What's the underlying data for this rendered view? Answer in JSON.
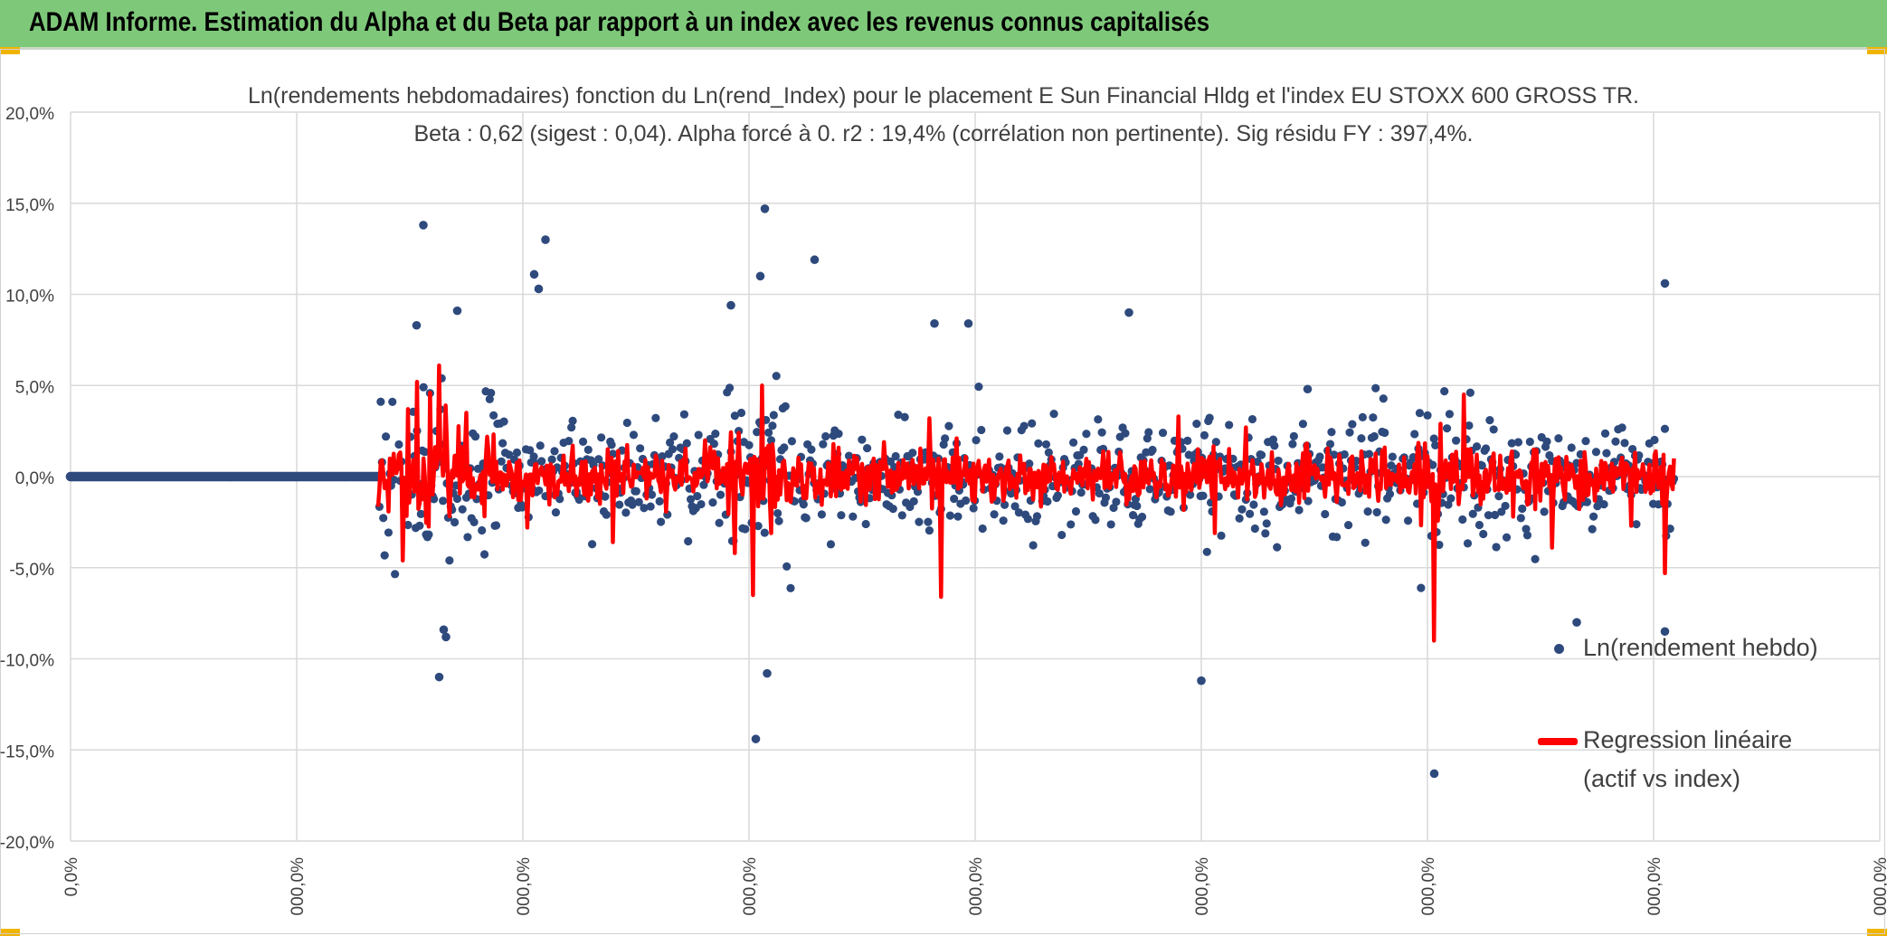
{
  "banner": {
    "title": "ADAM Informe. Estimation du Alpha et du Beta par rapport à un index avec les revenus connus capitalisés",
    "background": "#7ec87a",
    "corner_color": "#f0b400"
  },
  "chart_data": {
    "type": "scatter",
    "title": "Ln(rendements hebdomadaires) fonction du Ln(rend_Index) pour le placement E Sun Financial Hldg  et l'index EU STOXX 600 GROSS TR.",
    "subtitle": "Beta : 0,62 (sigest : 0,04). Alpha forcé à 0. r2 : 19,4% (corrélation non pertinente). Sig résidu FY : 397,4%.",
    "xlabel": "",
    "ylabel": "",
    "ylim": [
      -20,
      20
    ],
    "y_tick_labels": [
      "20,0%",
      "15,0%",
      "10,0%",
      "5,0%",
      "0,0%",
      "-5,0%",
      "-10,0%",
      "-15,0%",
      "-20,0%"
    ],
    "x_tick_labels": [
      "0,0%",
      "000,0%",
      "000,0%",
      "000,0%",
      "000,0%",
      "000,0%",
      "000,0%",
      "000,0%",
      "000,0%"
    ],
    "grid": true,
    "legend_position": "bottom-right",
    "series": [
      {
        "name": "Ln(rendement hebdo)",
        "color": "#2e4a7d",
        "marker": "dot",
        "zero_run": {
          "from": 0,
          "to": 1.36
        },
        "outliers": [
          [
            1.56,
            13.8
          ],
          [
            2.05,
            11.1
          ],
          [
            2.07,
            10.3
          ],
          [
            2.1,
            13.0
          ],
          [
            3.07,
            14.7
          ],
          [
            3.05,
            11.0
          ],
          [
            3.29,
            11.9
          ],
          [
            3.82,
            8.4
          ],
          [
            3.97,
            8.4
          ],
          [
            4.68,
            9.0
          ],
          [
            7.05,
            10.6
          ],
          [
            5.47,
            4.8
          ],
          [
            1.63,
            -11.0
          ],
          [
            3.03,
            -14.4
          ],
          [
            3.08,
            -10.8
          ],
          [
            5.0,
            -11.2
          ],
          [
            6.03,
            -16.3
          ],
          [
            6.66,
            -8.0
          ],
          [
            7.05,
            -8.5
          ],
          [
            1.65,
            -8.4
          ],
          [
            1.66,
            -8.8
          ],
          [
            1.71,
            9.1
          ],
          [
            1.53,
            8.3
          ],
          [
            2.92,
            9.4
          ]
        ]
      },
      {
        "name": "Regression linéaire (actif vs index)",
        "color": "#ff0000",
        "marker": "line",
        "spikes": [
          [
            1.47,
            -4.6
          ],
          [
            1.49,
            3.7
          ],
          [
            1.53,
            5.2
          ],
          [
            1.59,
            4.6
          ],
          [
            1.63,
            6.1
          ],
          [
            1.66,
            3.9
          ],
          [
            1.75,
            3.5
          ],
          [
            2.02,
            -2.8
          ],
          [
            2.4,
            -3.6
          ],
          [
            2.94,
            -4.2
          ],
          [
            3.02,
            -6.5
          ],
          [
            3.06,
            5.0
          ],
          [
            3.1,
            -3.1
          ],
          [
            3.8,
            3.2
          ],
          [
            3.85,
            -6.6
          ],
          [
            3.92,
            2.1
          ],
          [
            4.9,
            3.3
          ],
          [
            5.06,
            -3.1
          ],
          [
            5.2,
            2.7
          ],
          [
            6.03,
            -9.0
          ],
          [
            6.06,
            2.9
          ],
          [
            6.16,
            4.5
          ],
          [
            6.38,
            -2.2
          ],
          [
            6.55,
            -3.9
          ],
          [
            6.9,
            -2.7
          ],
          [
            7.05,
            -5.3
          ],
          [
            7.09,
            1.0
          ]
        ]
      }
    ]
  },
  "legend": {
    "entries": [
      {
        "label": "Ln(rendement hebdo)"
      },
      {
        "label_line1": "Regression linéaire",
        "label_line2": "(actif vs index)"
      }
    ]
  }
}
